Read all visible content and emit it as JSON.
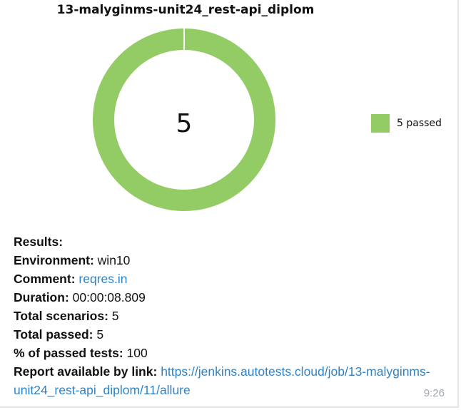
{
  "chart_data": {
    "type": "pie",
    "title": "13-malyginms-unit24_rest-api_diplom",
    "center_label": "5",
    "slices": [
      {
        "name": "passed",
        "value": 5,
        "color": "#93cc65"
      }
    ],
    "legend": [
      "5 passed"
    ],
    "legend_position": "right"
  },
  "message": {
    "results_label": "Results:",
    "environment_label": "Environment:",
    "environment_value": "win10",
    "comment_label": "Comment:",
    "comment_value": "reqres.in",
    "duration_label": "Duration:",
    "duration_value": "00:00:08.809",
    "total_scenarios_label": "Total scenarios:",
    "total_scenarios_value": "5",
    "total_passed_label": "Total passed:",
    "total_passed_value": "5",
    "percent_label": "% of passed tests:",
    "percent_value": "100",
    "report_label": "Report available by link:",
    "report_link": "https://jenkins.autotests.cloud/job/13-malyginms-unit24_rest-api_diplom/11/allure",
    "time": "9:26"
  }
}
